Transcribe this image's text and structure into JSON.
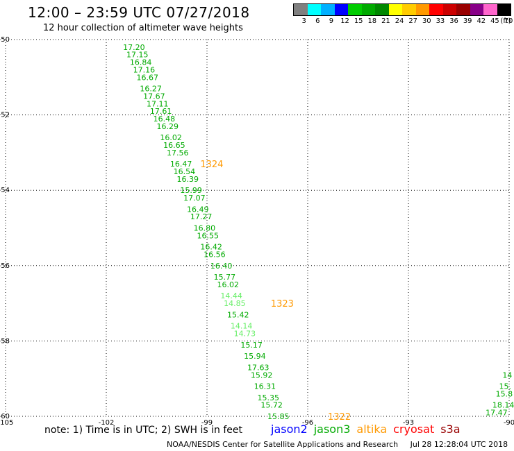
{
  "header": {
    "title": "12:00 – 23:59 UTC 07/27/2018",
    "subtitle": "12 hour collection of altimeter wave heights"
  },
  "legend": {
    "unit": "(ft)",
    "colors": [
      "#808080",
      "#00ffff",
      "#00b0ff",
      "#0000ff",
      "#00cc00",
      "#00aa00",
      "#008800",
      "#ffff00",
      "#ffcc00",
      "#ff9900",
      "#ff0000",
      "#cc0000",
      "#990000",
      "#880088",
      "#ff66cc",
      "#000000"
    ],
    "ticks": [
      "3",
      "6",
      "9",
      "12",
      "15",
      "18",
      "21",
      "24",
      "27",
      "30",
      "33",
      "36",
      "39",
      "42",
      "45",
      "70"
    ]
  },
  "map": {
    "lon_range": [
      -105,
      -90
    ],
    "lat_range": [
      -60.0,
      -50.0
    ],
    "lon_ticks": [
      -105,
      -102,
      -99,
      -96,
      -93,
      -90
    ],
    "lat_ticks": [
      -50,
      -52,
      -54,
      -56,
      -58,
      -60
    ],
    "lon_tick_labels": [
      "-105",
      "-102",
      "-99",
      "-96",
      "-93",
      "-90"
    ],
    "lat_tick_labels": [
      "-50",
      "-52",
      "-54",
      "-56",
      "-58",
      "-60"
    ],
    "grid": "dotted",
    "colors": {
      "dark_green": "#00aa00",
      "light_green": "#66ee66",
      "orange": "#ff9900"
    },
    "track": [
      {
        "lon": -101.5,
        "lat": -50.2,
        "value": "17.20",
        "tone": "dark"
      },
      {
        "lon": -101.4,
        "lat": -50.4,
        "value": "17.15",
        "tone": "dark"
      },
      {
        "lon": -101.3,
        "lat": -50.6,
        "value": "16.84",
        "tone": "dark"
      },
      {
        "lon": -101.2,
        "lat": -50.8,
        "value": "17.16",
        "tone": "dark"
      },
      {
        "lon": -101.1,
        "lat": -51.0,
        "value": "16.67",
        "tone": "dark"
      },
      {
        "lon": -101.0,
        "lat": -51.3,
        "value": "16.27",
        "tone": "dark"
      },
      {
        "lon": -100.9,
        "lat": -51.5,
        "value": "17.67",
        "tone": "dark"
      },
      {
        "lon": -100.8,
        "lat": -51.7,
        "value": "17.11",
        "tone": "dark"
      },
      {
        "lon": -100.7,
        "lat": -51.9,
        "value": "17.61",
        "tone": "dark"
      },
      {
        "lon": -100.6,
        "lat": -52.1,
        "value": "16.48",
        "tone": "dark"
      },
      {
        "lon": -100.5,
        "lat": -52.3,
        "value": "16.29",
        "tone": "dark"
      },
      {
        "lon": -100.4,
        "lat": -52.6,
        "value": "16.02",
        "tone": "dark"
      },
      {
        "lon": -100.3,
        "lat": -52.8,
        "value": "16.65",
        "tone": "dark"
      },
      {
        "lon": -100.2,
        "lat": -53.0,
        "value": "17.56",
        "tone": "dark"
      },
      {
        "lon": -100.1,
        "lat": -53.3,
        "value": "16.47",
        "tone": "dark"
      },
      {
        "lon": -100.0,
        "lat": -53.5,
        "value": "16.54",
        "tone": "dark"
      },
      {
        "lon": -99.9,
        "lat": -53.7,
        "value": "16.39",
        "tone": "dark"
      },
      {
        "lon": -99.8,
        "lat": -54.0,
        "value": "15.99",
        "tone": "dark"
      },
      {
        "lon": -99.7,
        "lat": -54.2,
        "value": "17.07",
        "tone": "dark"
      },
      {
        "lon": -99.6,
        "lat": -54.5,
        "value": "16.49",
        "tone": "dark"
      },
      {
        "lon": -99.5,
        "lat": -54.7,
        "value": "17.27",
        "tone": "dark"
      },
      {
        "lon": -99.4,
        "lat": -55.0,
        "value": "16.80",
        "tone": "dark"
      },
      {
        "lon": -99.3,
        "lat": -55.2,
        "value": "16.55",
        "tone": "dark"
      },
      {
        "lon": -99.2,
        "lat": -55.5,
        "value": "16.42",
        "tone": "dark"
      },
      {
        "lon": -99.1,
        "lat": -55.7,
        "value": "16.56",
        "tone": "dark"
      },
      {
        "lon": -98.9,
        "lat": -56.0,
        "value": "16.40",
        "tone": "dark"
      },
      {
        "lon": -98.8,
        "lat": -56.3,
        "value": "15.77",
        "tone": "dark"
      },
      {
        "lon": -98.7,
        "lat": -56.5,
        "value": "16.02",
        "tone": "dark"
      },
      {
        "lon": -98.6,
        "lat": -56.8,
        "value": "14.44",
        "tone": "light"
      },
      {
        "lon": -98.5,
        "lat": -57.0,
        "value": "14.85",
        "tone": "light"
      },
      {
        "lon": -98.4,
        "lat": -57.3,
        "value": "15.42",
        "tone": "dark"
      },
      {
        "lon": -98.3,
        "lat": -57.6,
        "value": "14.14",
        "tone": "light"
      },
      {
        "lon": -98.2,
        "lat": -57.8,
        "value": "14.73",
        "tone": "light"
      },
      {
        "lon": -98.0,
        "lat": -58.1,
        "value": "15.17",
        "tone": "dark"
      },
      {
        "lon": -97.9,
        "lat": -58.4,
        "value": "15.94",
        "tone": "dark"
      },
      {
        "lon": -97.8,
        "lat": -58.7,
        "value": "17.63",
        "tone": "dark"
      },
      {
        "lon": -97.7,
        "lat": -58.9,
        "value": "15.92",
        "tone": "dark"
      },
      {
        "lon": -97.6,
        "lat": -59.2,
        "value": "16.31",
        "tone": "dark"
      },
      {
        "lon": -97.5,
        "lat": -59.5,
        "value": "15.35",
        "tone": "dark"
      },
      {
        "lon": -97.4,
        "lat": -59.7,
        "value": "15.72",
        "tone": "dark"
      },
      {
        "lon": -97.2,
        "lat": -60.0,
        "value": "15.85",
        "tone": "dark"
      }
    ],
    "track_east": [
      {
        "lon": -90.2,
        "lat": -58.9,
        "value": "14",
        "tone": "dark"
      },
      {
        "lon": -90.3,
        "lat": -59.2,
        "value": "15.",
        "tone": "dark"
      },
      {
        "lon": -90.4,
        "lat": -59.4,
        "value": "15.8",
        "tone": "dark"
      },
      {
        "lon": -90.5,
        "lat": -59.7,
        "value": "18.14",
        "tone": "dark"
      },
      {
        "lon": -90.7,
        "lat": -59.9,
        "value": "17.47",
        "tone": "dark"
      }
    ],
    "pass_labels": [
      {
        "lon": -99.2,
        "lat": -53.3,
        "value": "1324"
      },
      {
        "lon": -97.1,
        "lat": -57.0,
        "value": "1323"
      },
      {
        "lon": -95.4,
        "lat": -60.0,
        "value": "1322"
      }
    ]
  },
  "footer": {
    "note": "note: 1) Time is in UTC; 2) SWH is in feet",
    "satellites": [
      {
        "name": "jason2",
        "color": "#0000ff"
      },
      {
        "name": "jason3",
        "color": "#00aa00"
      },
      {
        "name": "altika",
        "color": "#ff9900"
      },
      {
        "name": "cryosat",
        "color": "#ff0000"
      },
      {
        "name": "s3a",
        "color": "#990000"
      }
    ],
    "credit": "NOAA/NESDIS Center for Satellite Applications and Research",
    "timestamp": "Jul 28 12:28:04 UTC 2018"
  }
}
